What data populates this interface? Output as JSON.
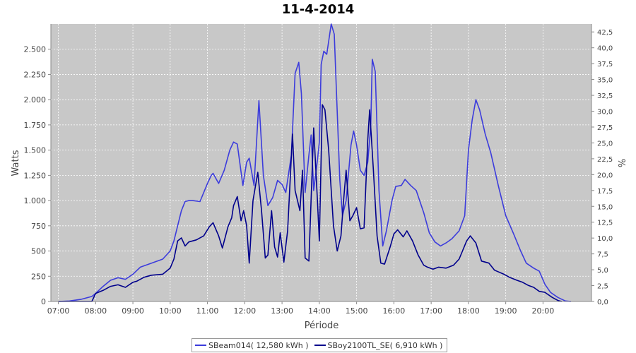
{
  "chart_data": {
    "type": "line",
    "title": "11-4-2014",
    "xlabel": "Période",
    "ylabel": "Watts",
    "y2label": "%",
    "xlim": [
      6.8,
      21.3
    ],
    "ylim": [
      0,
      2750
    ],
    "y2lim": [
      0,
      43.75
    ],
    "x_ticks": [
      7,
      8,
      9,
      10,
      11,
      12,
      13,
      14,
      15,
      16,
      17,
      18,
      19,
      20
    ],
    "x_tick_labels": [
      "07:00",
      "08:00",
      "09:00",
      "10:00",
      "11:00",
      "12:00",
      "13:00",
      "14:00",
      "15:00",
      "16:00",
      "17:00",
      "18:00",
      "19:00",
      "20:00"
    ],
    "y_ticks": [
      0,
      250,
      500,
      750,
      1000,
      1250,
      1500,
      1750,
      2000,
      2250,
      2500
    ],
    "y_tick_labels": [
      "0",
      "250",
      "500",
      "750",
      "1.000",
      "1.250",
      "1.500",
      "1.750",
      "2.000",
      "2.250",
      "2.500"
    ],
    "y2_ticks": [
      0,
      2.5,
      5,
      7.5,
      10,
      12.5,
      15,
      17.5,
      20,
      22.5,
      25,
      27.5,
      30,
      32.5,
      35,
      37.5,
      40,
      42.5
    ],
    "y2_tick_labels": [
      "0,0",
      "2,5",
      "5,0",
      "7,5",
      "10,0",
      "12,5",
      "15,0",
      "17,5",
      "20,0",
      "22,5",
      "25,0",
      "27,5",
      "30,0",
      "32,5",
      "35,0",
      "37,5",
      "40,0",
      "42,5"
    ],
    "grid": true,
    "legend_position": "bottom",
    "colors": {
      "plot_background": "#c8c8c8",
      "grid": "#ffffff"
    },
    "series": [
      {
        "name": "SBeam014( 12,580 kWh )",
        "color": "#3c3cdc",
        "points": [
          [
            7.0,
            0
          ],
          [
            7.3,
            5
          ],
          [
            7.6,
            20
          ],
          [
            7.9,
            50
          ],
          [
            8.0,
            80
          ],
          [
            8.2,
            150
          ],
          [
            8.4,
            210
          ],
          [
            8.6,
            235
          ],
          [
            8.8,
            220
          ],
          [
            9.0,
            270
          ],
          [
            9.2,
            340
          ],
          [
            9.5,
            380
          ],
          [
            9.8,
            420
          ],
          [
            10.0,
            500
          ],
          [
            10.1,
            600
          ],
          [
            10.2,
            750
          ],
          [
            10.3,
            900
          ],
          [
            10.4,
            990
          ],
          [
            10.5,
            1000
          ],
          [
            10.6,
            1000
          ],
          [
            10.8,
            990
          ],
          [
            11.0,
            1170
          ],
          [
            11.1,
            1250
          ],
          [
            11.15,
            1270
          ],
          [
            11.3,
            1170
          ],
          [
            11.45,
            1300
          ],
          [
            11.6,
            1500
          ],
          [
            11.7,
            1580
          ],
          [
            11.8,
            1560
          ],
          [
            11.95,
            1150
          ],
          [
            12.05,
            1380
          ],
          [
            12.12,
            1420
          ],
          [
            12.25,
            1150
          ],
          [
            12.38,
            1990
          ],
          [
            12.5,
            1250
          ],
          [
            12.62,
            950
          ],
          [
            12.75,
            1030
          ],
          [
            12.88,
            1200
          ],
          [
            13.0,
            1160
          ],
          [
            13.1,
            1080
          ],
          [
            13.25,
            1450
          ],
          [
            13.35,
            2260
          ],
          [
            13.45,
            2370
          ],
          [
            13.52,
            2060
          ],
          [
            13.62,
            1080
          ],
          [
            13.72,
            1450
          ],
          [
            13.78,
            1650
          ],
          [
            13.85,
            1100
          ],
          [
            13.95,
            1400
          ],
          [
            14.0,
            1580
          ],
          [
            14.05,
            2350
          ],
          [
            14.12,
            2480
          ],
          [
            14.2,
            2450
          ],
          [
            14.32,
            2750
          ],
          [
            14.4,
            2650
          ],
          [
            14.55,
            1200
          ],
          [
            14.62,
            850
          ],
          [
            14.72,
            1000
          ],
          [
            14.85,
            1550
          ],
          [
            14.92,
            1690
          ],
          [
            15.0,
            1550
          ],
          [
            15.1,
            1300
          ],
          [
            15.2,
            1250
          ],
          [
            15.3,
            1380
          ],
          [
            15.38,
            1750
          ],
          [
            15.42,
            2400
          ],
          [
            15.5,
            2280
          ],
          [
            15.6,
            1100
          ],
          [
            15.7,
            550
          ],
          [
            15.8,
            700
          ],
          [
            15.95,
            1000
          ],
          [
            16.05,
            1140
          ],
          [
            16.2,
            1150
          ],
          [
            16.3,
            1210
          ],
          [
            16.45,
            1150
          ],
          [
            16.6,
            1100
          ],
          [
            16.8,
            880
          ],
          [
            16.95,
            680
          ],
          [
            17.1,
            590
          ],
          [
            17.25,
            550
          ],
          [
            17.4,
            580
          ],
          [
            17.55,
            620
          ],
          [
            17.75,
            700
          ],
          [
            17.9,
            850
          ],
          [
            18.0,
            1500
          ],
          [
            18.1,
            1800
          ],
          [
            18.2,
            2000
          ],
          [
            18.3,
            1900
          ],
          [
            18.45,
            1660
          ],
          [
            18.6,
            1470
          ],
          [
            18.8,
            1150
          ],
          [
            19.0,
            850
          ],
          [
            19.2,
            680
          ],
          [
            19.4,
            500
          ],
          [
            19.55,
            380
          ],
          [
            19.75,
            330
          ],
          [
            19.9,
            300
          ],
          [
            20.05,
            170
          ],
          [
            20.2,
            90
          ],
          [
            20.4,
            40
          ],
          [
            20.6,
            5
          ],
          [
            20.75,
            0
          ]
        ]
      },
      {
        "name": "SBoy2100TL_SE( 6,910 kWh )",
        "color": "#00008c",
        "points": [
          [
            7.0,
            0
          ],
          [
            7.5,
            0
          ],
          [
            7.9,
            0
          ],
          [
            8.0,
            80
          ],
          [
            8.2,
            110
          ],
          [
            8.4,
            150
          ],
          [
            8.6,
            165
          ],
          [
            8.8,
            140
          ],
          [
            9.0,
            190
          ],
          [
            9.1,
            200
          ],
          [
            9.3,
            240
          ],
          [
            9.5,
            260
          ],
          [
            9.8,
            270
          ],
          [
            10.0,
            330
          ],
          [
            10.1,
            420
          ],
          [
            10.2,
            600
          ],
          [
            10.3,
            630
          ],
          [
            10.4,
            550
          ],
          [
            10.5,
            590
          ],
          [
            10.7,
            610
          ],
          [
            10.9,
            650
          ],
          [
            11.05,
            740
          ],
          [
            11.15,
            780
          ],
          [
            11.3,
            650
          ],
          [
            11.4,
            530
          ],
          [
            11.55,
            740
          ],
          [
            11.65,
            830
          ],
          [
            11.7,
            950
          ],
          [
            11.8,
            1040
          ],
          [
            11.9,
            800
          ],
          [
            11.97,
            900
          ],
          [
            12.05,
            750
          ],
          [
            12.12,
            380
          ],
          [
            12.22,
            1000
          ],
          [
            12.35,
            1280
          ],
          [
            12.45,
            900
          ],
          [
            12.55,
            430
          ],
          [
            12.62,
            460
          ],
          [
            12.72,
            900
          ],
          [
            12.8,
            540
          ],
          [
            12.88,
            440
          ],
          [
            12.95,
            680
          ],
          [
            13.05,
            390
          ],
          [
            13.15,
            700
          ],
          [
            13.28,
            1660
          ],
          [
            13.35,
            1100
          ],
          [
            13.48,
            900
          ],
          [
            13.55,
            1300
          ],
          [
            13.62,
            430
          ],
          [
            13.72,
            400
          ],
          [
            13.85,
            1720
          ],
          [
            13.95,
            1000
          ],
          [
            14.0,
            600
          ],
          [
            14.08,
            1950
          ],
          [
            14.15,
            1900
          ],
          [
            14.25,
            1500
          ],
          [
            14.38,
            750
          ],
          [
            14.48,
            500
          ],
          [
            14.58,
            650
          ],
          [
            14.65,
            1000
          ],
          [
            14.72,
            1300
          ],
          [
            14.82,
            800
          ],
          [
            14.9,
            850
          ],
          [
            15.0,
            930
          ],
          [
            15.1,
            720
          ],
          [
            15.2,
            730
          ],
          [
            15.3,
            1600
          ],
          [
            15.35,
            1900
          ],
          [
            15.45,
            1300
          ],
          [
            15.55,
            650
          ],
          [
            15.65,
            380
          ],
          [
            15.75,
            370
          ],
          [
            15.9,
            540
          ],
          [
            16.0,
            670
          ],
          [
            16.1,
            710
          ],
          [
            16.25,
            640
          ],
          [
            16.35,
            700
          ],
          [
            16.5,
            600
          ],
          [
            16.65,
            460
          ],
          [
            16.8,
            360
          ],
          [
            16.9,
            340
          ],
          [
            17.05,
            320
          ],
          [
            17.2,
            340
          ],
          [
            17.4,
            330
          ],
          [
            17.6,
            360
          ],
          [
            17.75,
            420
          ],
          [
            17.95,
            600
          ],
          [
            18.05,
            650
          ],
          [
            18.2,
            580
          ],
          [
            18.35,
            400
          ],
          [
            18.55,
            380
          ],
          [
            18.7,
            310
          ],
          [
            18.95,
            270
          ],
          [
            19.1,
            240
          ],
          [
            19.3,
            210
          ],
          [
            19.45,
            190
          ],
          [
            19.6,
            160
          ],
          [
            19.75,
            140
          ],
          [
            19.9,
            100
          ],
          [
            20.05,
            90
          ],
          [
            20.25,
            40
          ],
          [
            20.4,
            10
          ],
          [
            20.5,
            0
          ]
        ]
      }
    ]
  }
}
